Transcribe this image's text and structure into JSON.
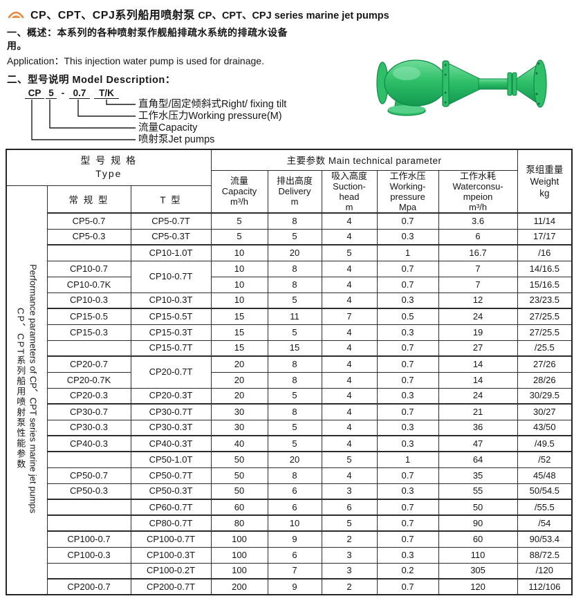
{
  "page": {
    "title_cn": "CP、CPT、CPJ系列船用喷射泵",
    "title_en": "CP、CPT、CPJ series marine jet pumps",
    "overview": "一、概述：本系列的各种喷射泵作舰船排疏水系统的排疏水设备\n用。",
    "application": "Application：This injection water pump is used for drainage.",
    "model_heading": "二、型号说明 Model Description："
  },
  "icons": {
    "logo": "sunrise-arc-icon",
    "pump": "green-jet-pump-photo"
  },
  "colors": {
    "pump_green": "#2fbf68",
    "pump_green_dark": "#0e8a47",
    "pump_green_light": "#8fe6b4",
    "logo_orange": "#ee8338",
    "table_border": "#2b2b2b",
    "text": "#161616"
  },
  "model_diagram": {
    "tokens": [
      "CP",
      "5",
      "-",
      "0.7",
      "T/K"
    ],
    "labels": [
      "直角型/固定倾斜式Right/ fixing tilt",
      "工作水压力Working pressure(M)",
      "流量Capacity",
      "喷射泵Jet pumps"
    ]
  },
  "table": {
    "header": {
      "type": "型 号 规 格\nType",
      "main": "主要参数 Main technical parameter",
      "weight": "泵组重量\nWeight\nkg",
      "regular": "常 规 型",
      "t_type": "T 型",
      "params": [
        "流量\nCapacity\nm³/h",
        "排出高度\nDelivery\nm",
        "吸入高度\nSuction-\nhead\nm",
        "工作水压\nWorking-\npressure\nMpa",
        "工作水耗\nWaterconsu-\nmpeion\nm³/h"
      ]
    },
    "side": {
      "en": "Performance parameters of CP、CPT series marine jet pumps",
      "cn": "CP、CPT系列船用喷射泵性能参数"
    },
    "rows": [
      {
        "reg": "CP5-0.7",
        "t": "CP5-0.7T",
        "cap": "5",
        "del": "8",
        "suc": "4",
        "pre": "0.7",
        "con": "3.6",
        "wt": "11/14"
      },
      {
        "reg": "CP5-0.3",
        "t": "CP5-0.3T",
        "cap": "5",
        "del": "5",
        "suc": "4",
        "pre": "0.3",
        "con": "6",
        "wt": "17/17"
      },
      {
        "reg": "",
        "t": "CP10-1.0T",
        "cap": "10",
        "del": "20",
        "suc": "5",
        "pre": "1",
        "con": "16.7",
        "wt": "/16",
        "group": true
      },
      {
        "reg": "CP10-0.7",
        "t": "CP10-0.7T",
        "t_span": 2,
        "cap": "10",
        "del": "8",
        "suc": "4",
        "pre": "0.7",
        "con": "7",
        "wt": "14/16.5"
      },
      {
        "reg": "CP10-0.7K",
        "t_skip": true,
        "cap": "10",
        "del": "8",
        "suc": "4",
        "pre": "0.7",
        "con": "7",
        "wt": "15/16.5"
      },
      {
        "reg": "CP10-0.3",
        "t": "CP10-0.3T",
        "cap": "10",
        "del": "5",
        "suc": "4",
        "pre": "0.3",
        "con": "12",
        "wt": "23/23.5"
      },
      {
        "reg": "CP15-0.5",
        "t": "CP15-0.5T",
        "cap": "15",
        "del": "11",
        "suc": "7",
        "pre": "0.5",
        "con": "24",
        "wt": "27/25.5",
        "group": true
      },
      {
        "reg": "CP15-0.3",
        "t": "CP15-0.3T",
        "cap": "15",
        "del": "5",
        "suc": "4",
        "pre": "0.3",
        "con": "19",
        "wt": "27/25.5"
      },
      {
        "reg": "",
        "t": "CP15-0.7T",
        "cap": "15",
        "del": "15",
        "suc": "4",
        "pre": "0.7",
        "con": "27",
        "wt": "/25.5"
      },
      {
        "reg": "CP20-0.7",
        "t": "CP20-0.7T",
        "t_span": 2,
        "cap": "20",
        "del": "8",
        "suc": "4",
        "pre": "0.7",
        "con": "14",
        "wt": "27/26",
        "group": true
      },
      {
        "reg": "CP20-0.7K",
        "t_skip": true,
        "cap": "20",
        "del": "8",
        "suc": "4",
        "pre": "0.7",
        "con": "14",
        "wt": "28/26"
      },
      {
        "reg": "CP20-0.3",
        "t": "CP20-0.3T",
        "cap": "20",
        "del": "5",
        "suc": "4",
        "pre": "0.3",
        "con": "24",
        "wt": "30/29.5"
      },
      {
        "reg": "CP30-0.7",
        "t": "CP30-0.7T",
        "cap": "30",
        "del": "8",
        "suc": "4",
        "pre": "0.7",
        "con": "21",
        "wt": "30/27",
        "group": true
      },
      {
        "reg": "CP30-0.3",
        "t": "CP30-0.3T",
        "cap": "30",
        "del": "5",
        "suc": "4",
        "pre": "0.3",
        "con": "36",
        "wt": "43/50"
      },
      {
        "reg": "CP40-0.3",
        "t": "CP40-0.3T",
        "cap": "40",
        "del": "5",
        "suc": "4",
        "pre": "0.3",
        "con": "47",
        "wt": "/49.5",
        "group": true
      },
      {
        "reg": "",
        "t": "CP50-1.0T",
        "cap": "50",
        "del": "20",
        "suc": "5",
        "pre": "1",
        "con": "64",
        "wt": "/52",
        "group": true
      },
      {
        "reg": "CP50-0.7",
        "t": "CP50-0.7T",
        "cap": "50",
        "del": "8",
        "suc": "4",
        "pre": "0.7",
        "con": "35",
        "wt": "45/48"
      },
      {
        "reg": "CP50-0.3",
        "t": "CP50-0.3T",
        "cap": "50",
        "del": "6",
        "suc": "3",
        "pre": "0.3",
        "con": "55",
        "wt": "50/54.5"
      },
      {
        "reg": "",
        "t": "CP60-0.7T",
        "cap": "60",
        "del": "6",
        "suc": "6",
        "pre": "0.7",
        "con": "50",
        "wt": "/55.5",
        "group": true
      },
      {
        "reg": "",
        "t": "CP80-0.7T",
        "cap": "80",
        "del": "10",
        "suc": "5",
        "pre": "0.7",
        "con": "90",
        "wt": "/54",
        "group": true
      },
      {
        "reg": "CP100-0.7",
        "t": "CP100-0.7T",
        "cap": "100",
        "del": "9",
        "suc": "2",
        "pre": "0.7",
        "con": "60",
        "wt": "90/53.4",
        "group": true
      },
      {
        "reg": "CP100-0.3",
        "t": "CP100-0.3T",
        "cap": "100",
        "del": "6",
        "suc": "3",
        "pre": "0.3",
        "con": "110",
        "wt": "88/72.5"
      },
      {
        "reg": "",
        "t": "CP100-0.2T",
        "cap": "100",
        "del": "7",
        "suc": "3",
        "pre": "0.2",
        "con": "305",
        "wt": "/120"
      },
      {
        "reg": "CP200-0.7",
        "t": "CP200-0.7T",
        "cap": "200",
        "del": "9",
        "suc": "2",
        "pre": "0.7",
        "con": "120",
        "wt": "112/106",
        "group": true
      }
    ]
  }
}
